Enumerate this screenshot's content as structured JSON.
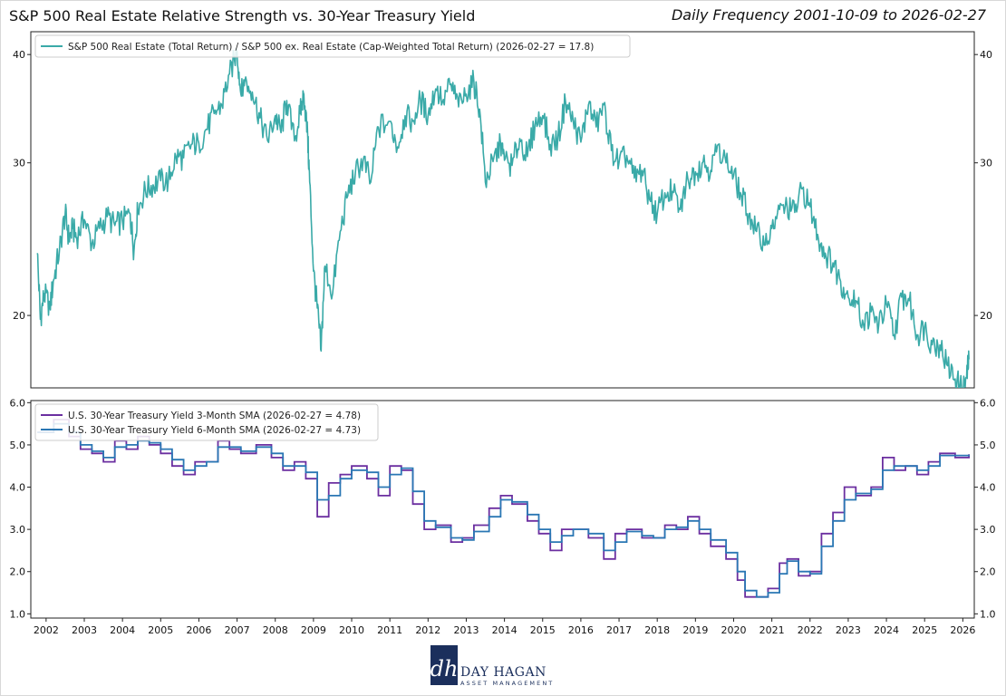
{
  "header": {
    "title": "S&P 500 Real Estate Relative Strength vs. 30-Year Treasury Yield",
    "frequency": "Daily Frequency 2001-10-09 to 2026-02-27"
  },
  "colors": {
    "ratio": "#3aaaa8",
    "sma3": "#6b2fa0",
    "sma6": "#2a77b4",
    "logo": "#1b2f5c"
  },
  "logo": {
    "monogram": "dh",
    "name": "DAY HAGAN",
    "subtitle": "ASSET MANAGEMENT"
  },
  "chart_data": [
    {
      "type": "line",
      "yscale": "log",
      "ylim": [
        16.5,
        42.5
      ],
      "yticks": [
        20,
        30,
        40
      ],
      "xlim": [
        2001.6,
        2026.3
      ],
      "grid": false,
      "legend": "top-left",
      "series": [
        {
          "name": "S&P 500 Real Estate (Total Return) / S&P 500 ex. Real Estate (Cap-Weighted Total Return) (2026-02-27 = 17.8)",
          "x": [
            2001.77,
            2001.85,
            2001.95,
            2002.1,
            2002.2,
            2002.35,
            2002.5,
            2002.6,
            2002.7,
            2002.8,
            2003.0,
            2003.2,
            2003.4,
            2003.6,
            2003.8,
            2004.0,
            2004.2,
            2004.3,
            2004.4,
            2004.6,
            2004.8,
            2005.0,
            2005.2,
            2005.4,
            2005.6,
            2005.8,
            2006.0,
            2006.2,
            2006.4,
            2006.6,
            2006.8,
            2007.0,
            2007.1,
            2007.2,
            2007.4,
            2007.6,
            2007.8,
            2008.0,
            2008.15,
            2008.3,
            2008.5,
            2008.65,
            2008.75,
            2008.85,
            2008.9,
            2009.0,
            2009.1,
            2009.2,
            2009.3,
            2009.5,
            2009.7,
            2009.9,
            2010.1,
            2010.3,
            2010.5,
            2010.7,
            2011.0,
            2011.2,
            2011.4,
            2011.6,
            2011.8,
            2012.0,
            2012.2,
            2012.4,
            2012.6,
            2012.8,
            2013.0,
            2013.2,
            2013.35,
            2013.5,
            2013.7,
            2013.9,
            2014.0,
            2014.2,
            2014.4,
            2014.6,
            2014.8,
            2015.0,
            2015.2,
            2015.4,
            2015.6,
            2015.8,
            2016.0,
            2016.2,
            2016.4,
            2016.6,
            2016.8,
            2017.0,
            2017.2,
            2017.4,
            2017.6,
            2017.8,
            2018.0,
            2018.2,
            2018.4,
            2018.6,
            2018.8,
            2019.0,
            2019.2,
            2019.4,
            2019.6,
            2019.8,
            2020.0,
            2020.2,
            2020.4,
            2020.6,
            2020.8,
            2021.0,
            2021.2,
            2021.4,
            2021.6,
            2021.8,
            2022.0,
            2022.2,
            2022.4,
            2022.6,
            2022.8,
            2023.0,
            2023.2,
            2023.4,
            2023.6,
            2023.8,
            2024.0,
            2024.2,
            2024.4,
            2024.6,
            2024.8,
            2025.0,
            2025.2,
            2025.4,
            2025.6,
            2025.8,
            2026.0,
            2026.1,
            2026.16
          ],
          "y": [
            23.6,
            19.8,
            21.2,
            20.5,
            22.0,
            23.8,
            26.2,
            24.5,
            25.2,
            24.6,
            25.8,
            24.2,
            25.2,
            26.0,
            25.4,
            25.7,
            26.2,
            23.7,
            26.5,
            27.9,
            28.3,
            28.6,
            28.6,
            30.5,
            30.4,
            31.5,
            31.6,
            32.8,
            34.2,
            35.0,
            38.0,
            40.3,
            36.0,
            37.2,
            36.2,
            33.8,
            31.8,
            34.0,
            32.5,
            35.4,
            31.8,
            34.2,
            36.0,
            32.0,
            28.5,
            22.5,
            20.4,
            18.2,
            22.8,
            21.2,
            25.0,
            27.5,
            29.3,
            30.2,
            28.5,
            33.0,
            33.5,
            31.3,
            34.0,
            33.5,
            35.5,
            34.0,
            36.5,
            35.5,
            37.0,
            34.8,
            36.0,
            37.2,
            34.6,
            28.5,
            30.1,
            31.5,
            30.2,
            29.8,
            32.0,
            30.5,
            33.2,
            34.0,
            31.5,
            32.0,
            35.3,
            33.5,
            31.7,
            35.0,
            33.0,
            35.0,
            31.0,
            30.0,
            30.6,
            28.8,
            29.4,
            27.2,
            26.2,
            27.7,
            27.8,
            26.5,
            28.8,
            29.3,
            30.1,
            29.4,
            31.5,
            30.0,
            29.0,
            27.5,
            26.2,
            25.0,
            24.1,
            25.2,
            26.5,
            26.7,
            26.3,
            28.0,
            26.7,
            24.8,
            23.6,
            23.0,
            21.9,
            21.0,
            20.8,
            19.5,
            20.2,
            19.5,
            20.6,
            19.0,
            21.0,
            20.8,
            19.0,
            19.4,
            18.5,
            18.5,
            17.5,
            16.9,
            16.4,
            17.0,
            17.8
          ]
        }
      ]
    },
    {
      "type": "line",
      "ylim": [
        0.9,
        6.05
      ],
      "yticks": [
        1.0,
        2.0,
        3.0,
        4.0,
        5.0,
        6.0
      ],
      "xlim": [
        2001.6,
        2026.3
      ],
      "xticks": [
        "2002",
        "2003",
        "2004",
        "2005",
        "2006",
        "2007",
        "2008",
        "2009",
        "2010",
        "2011",
        "2012",
        "2013",
        "2014",
        "2015",
        "2016",
        "2017",
        "2018",
        "2019",
        "2020",
        "2021",
        "2022",
        "2023",
        "2024",
        "2025",
        "2026"
      ],
      "grid": false,
      "legend": "top-left",
      "series": [
        {
          "name": "U.S. 30-Year Treasury Yield 3-Month SMA (2026-02-27 = 4.78)",
          "x": [
            2001.77,
            2002.2,
            2002.6,
            2002.9,
            2003.2,
            2003.5,
            2003.8,
            2004.1,
            2004.4,
            2004.7,
            2005.0,
            2005.3,
            2005.6,
            2005.9,
            2006.2,
            2006.5,
            2006.8,
            2007.1,
            2007.5,
            2007.9,
            2008.2,
            2008.5,
            2008.8,
            2009.1,
            2009.4,
            2009.7,
            2010.0,
            2010.4,
            2010.7,
            2011.0,
            2011.3,
            2011.6,
            2011.9,
            2012.2,
            2012.6,
            2012.9,
            2013.2,
            2013.6,
            2013.9,
            2014.2,
            2014.6,
            2014.9,
            2015.2,
            2015.5,
            2015.8,
            2016.2,
            2016.6,
            2016.9,
            2017.2,
            2017.6,
            2017.9,
            2018.2,
            2018.5,
            2018.8,
            2019.1,
            2019.4,
            2019.8,
            2020.1,
            2020.3,
            2020.6,
            2020.9,
            2021.2,
            2021.4,
            2021.7,
            2022.0,
            2022.3,
            2022.6,
            2022.9,
            2023.2,
            2023.6,
            2023.9,
            2024.2,
            2024.5,
            2024.8,
            2025.1,
            2025.4,
            2025.8,
            2026.16
          ],
          "y": [
            5.3,
            5.6,
            5.2,
            4.9,
            4.8,
            4.6,
            5.1,
            4.9,
            5.2,
            5.0,
            4.8,
            4.5,
            4.3,
            4.6,
            4.6,
            5.1,
            4.9,
            4.8,
            5.0,
            4.7,
            4.4,
            4.6,
            4.2,
            3.3,
            4.1,
            4.3,
            4.5,
            4.2,
            3.8,
            4.5,
            4.4,
            3.6,
            3.0,
            3.1,
            2.7,
            2.8,
            3.1,
            3.5,
            3.8,
            3.6,
            3.2,
            2.9,
            2.5,
            3.0,
            3.0,
            2.8,
            2.3,
            2.9,
            3.0,
            2.8,
            2.8,
            3.1,
            3.0,
            3.3,
            2.9,
            2.6,
            2.3,
            1.8,
            1.4,
            1.4,
            1.6,
            2.2,
            2.3,
            1.9,
            2.0,
            2.9,
            3.4,
            4.0,
            3.8,
            4.0,
            4.7,
            4.4,
            4.5,
            4.3,
            4.6,
            4.8,
            4.7,
            4.78
          ]
        },
        {
          "name": "U.S. 30-Year Treasury Yield 6-Month SMA (2026-02-27 = 4.73)",
          "x": [
            2001.77,
            2002.2,
            2002.6,
            2002.9,
            2003.2,
            2003.5,
            2003.8,
            2004.1,
            2004.4,
            2004.7,
            2005.0,
            2005.3,
            2005.6,
            2005.9,
            2006.2,
            2006.5,
            2006.8,
            2007.1,
            2007.5,
            2007.9,
            2008.2,
            2008.5,
            2008.8,
            2009.1,
            2009.4,
            2009.7,
            2010.0,
            2010.4,
            2010.7,
            2011.0,
            2011.3,
            2011.6,
            2011.9,
            2012.2,
            2012.6,
            2012.9,
            2013.2,
            2013.6,
            2013.9,
            2014.2,
            2014.6,
            2014.9,
            2015.2,
            2015.5,
            2015.8,
            2016.2,
            2016.6,
            2016.9,
            2017.2,
            2017.6,
            2017.9,
            2018.2,
            2018.5,
            2018.8,
            2019.1,
            2019.4,
            2019.8,
            2020.1,
            2020.3,
            2020.6,
            2020.9,
            2021.2,
            2021.4,
            2021.7,
            2022.0,
            2022.3,
            2022.6,
            2022.9,
            2023.2,
            2023.6,
            2023.9,
            2024.2,
            2024.5,
            2024.8,
            2025.1,
            2025.4,
            2025.8,
            2026.16
          ],
          "y": [
            5.3,
            5.5,
            5.3,
            5.0,
            4.85,
            4.7,
            4.95,
            5.0,
            5.1,
            5.05,
            4.9,
            4.65,
            4.4,
            4.5,
            4.6,
            4.95,
            4.95,
            4.85,
            4.95,
            4.8,
            4.5,
            4.5,
            4.35,
            3.7,
            3.8,
            4.2,
            4.4,
            4.35,
            4.0,
            4.3,
            4.45,
            3.9,
            3.2,
            3.05,
            2.8,
            2.75,
            2.95,
            3.3,
            3.7,
            3.65,
            3.35,
            3.0,
            2.7,
            2.85,
            3.0,
            2.9,
            2.5,
            2.7,
            2.95,
            2.85,
            2.8,
            3.0,
            3.05,
            3.2,
            3.0,
            2.75,
            2.45,
            2.0,
            1.55,
            1.4,
            1.5,
            1.95,
            2.25,
            2.0,
            1.95,
            2.6,
            3.2,
            3.7,
            3.85,
            3.95,
            4.4,
            4.5,
            4.5,
            4.4,
            4.5,
            4.75,
            4.75,
            4.73
          ]
        }
      ]
    }
  ]
}
